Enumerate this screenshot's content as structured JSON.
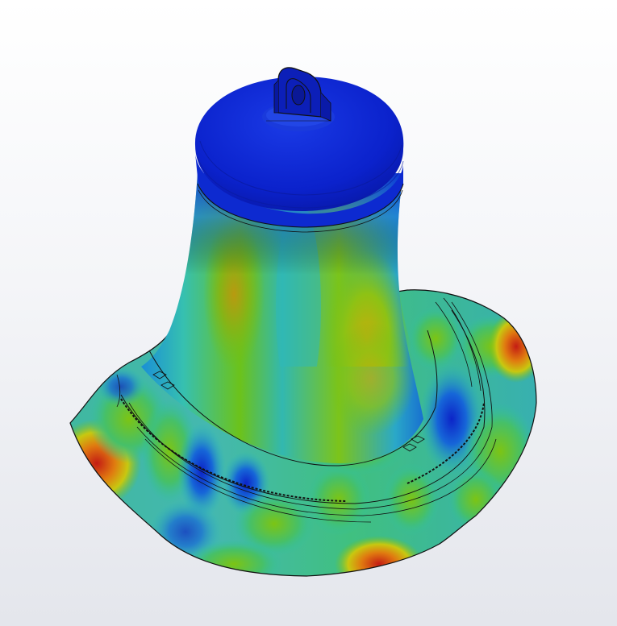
{
  "scene": {
    "background_top": "#ffffff",
    "background_bottom": "#e4e6ec",
    "object": "bell-mode-shape-plot",
    "colormap": {
      "low": "#0a1fd0",
      "low_mid": "#1a8fd6",
      "mid": "#2fc4a8",
      "mid_high": "#5fc21a",
      "high": "#c8b400",
      "max": "#c0201a"
    },
    "outline_color": "#111111"
  }
}
